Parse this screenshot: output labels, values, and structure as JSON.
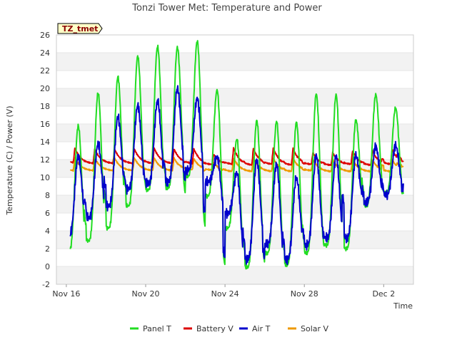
{
  "chart_data": {
    "type": "line",
    "title": "Tonzi Tower Met: Temperature and Power",
    "xlabel": "Time",
    "ylabel": "Temperature (C) / Power (V)",
    "ylim": [
      -2,
      26
    ],
    "yticks": [
      -2,
      0,
      2,
      4,
      6,
      8,
      10,
      12,
      14,
      16,
      18,
      20,
      22,
      24,
      26
    ],
    "xlim": [
      -0.5,
      17.5
    ],
    "x_unit": "days from Nov 16",
    "xtick_positions": [
      0,
      4,
      8,
      12,
      16
    ],
    "xtick_labels": [
      "Nov 16",
      "Nov 20",
      "Nov 24",
      "Nov 28",
      "Dec 2"
    ],
    "grid": "horizontal bands",
    "legend_position": "bottom-center",
    "site_tag": "TZ_tmet",
    "series": [
      {
        "name": "Panel T",
        "color": "#22dd22",
        "days": [
          0.4,
          1.4,
          2.4,
          3.4,
          4.4,
          5.4,
          6.4,
          7.4,
          8.4,
          9.4,
          10.4,
          11.4,
          12.4,
          13.4,
          14.4,
          15.4,
          16.4,
          17.0
        ],
        "max": [
          15.8,
          19.5,
          21.3,
          23.6,
          24.7,
          24.6,
          25.3,
          19.8,
          14.3,
          16.4,
          16.3,
          16.2,
          19.4,
          19.3,
          16.5,
          19.3,
          17.8,
          8.5
        ],
        "min": [
          1.7,
          2.9,
          4.3,
          6.8,
          8.6,
          8.8,
          10.1,
          7.9,
          4.3,
          -0.1,
          1.5,
          0.2,
          1.5,
          2.4,
          2.0,
          6.8,
          8.3,
          8.3
        ]
      },
      {
        "name": "Battery V",
        "color": "#dd0000",
        "days": [
          0.4,
          1.4,
          2.4,
          3.4,
          4.4,
          5.4,
          6.4,
          7.4,
          8.4,
          9.4,
          10.4,
          11.4,
          12.4,
          13.4,
          14.4,
          15.4,
          16.4,
          17.0
        ],
        "max": [
          13.3,
          13.2,
          13.2,
          13.2,
          13.3,
          13.2,
          13.2,
          12.6,
          13.3,
          13.3,
          13.3,
          13.3,
          12.8,
          12.8,
          13.0,
          13.0,
          13.2,
          11.9
        ],
        "min": [
          11.6,
          11.5,
          11.5,
          11.5,
          11.5,
          11.5,
          11.5,
          11.4,
          11.4,
          11.3,
          11.4,
          11.3,
          11.4,
          11.3,
          11.4,
          11.3,
          11.4,
          11.8
        ]
      },
      {
        "name": "Air T",
        "color": "#0000cc",
        "days": [
          0.4,
          1.4,
          2.4,
          3.4,
          4.4,
          5.4,
          6.4,
          7.4,
          8.4,
          9.4,
          10.4,
          11.4,
          12.4,
          13.4,
          14.4,
          15.4,
          16.4,
          17.0
        ],
        "max": [
          12.4,
          13.8,
          16.8,
          18.1,
          18.6,
          20.0,
          18.9,
          12.3,
          10.5,
          12.0,
          11.5,
          10.0,
          12.5,
          12.4,
          12.5,
          13.5,
          13.6,
          9.0
        ],
        "min": [
          3.5,
          5.5,
          6.8,
          8.7,
          9.3,
          9.5,
          10.8,
          9.5,
          6.0,
          0.8,
          2.5,
          0.8,
          2.4,
          3.2,
          3.2,
          7.2,
          8.0,
          8.8
        ]
      },
      {
        "name": "Solar V",
        "color": "#ee9900",
        "days": [
          0.4,
          1.4,
          2.4,
          3.4,
          4.4,
          5.4,
          6.4,
          7.4,
          8.4,
          9.4,
          10.4,
          11.4,
          12.4,
          13.4,
          14.4,
          15.4,
          16.4,
          17.0
        ],
        "max": [
          12.2,
          12.2,
          12.2,
          12.2,
          12.2,
          12.2,
          12.1,
          11.6,
          12.2,
          12.2,
          12.2,
          12.2,
          12.0,
          12.0,
          12.0,
          12.0,
          12.0,
          11.3
        ],
        "min": [
          10.7,
          10.7,
          10.7,
          10.7,
          10.7,
          10.7,
          10.8,
          10.8,
          10.6,
          10.6,
          10.6,
          10.6,
          10.7,
          10.6,
          10.6,
          10.6,
          10.6,
          11.2
        ]
      }
    ]
  }
}
